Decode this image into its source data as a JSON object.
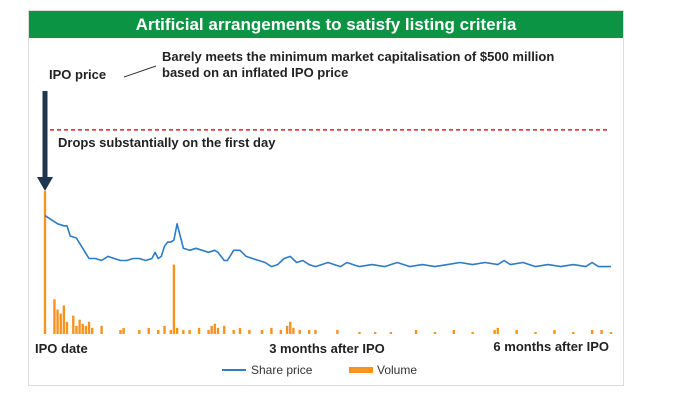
{
  "colors": {
    "title_bg": "#0b9444",
    "price_line": "#2e7cc4",
    "volume_bar": "#f7941d",
    "ipo_line": "#e02020",
    "arrow": "#1f3550"
  },
  "chart_data": {
    "type": "line",
    "title": "Artificial arrangements to satisfy listing criteria",
    "ipo_label": "IPO price",
    "annotations": [
      "Barely meets the minimum market capitalisation of $500 million",
      "based on an inflated IPO price",
      "Drops substantially on the first day"
    ],
    "x_ticks": [
      "IPO date",
      "3 months after IPO",
      "6 months after IPO"
    ],
    "x_tick_days": [
      0,
      90,
      180
    ],
    "x_range": [
      0,
      180
    ],
    "y_range": [
      0,
      1.2
    ],
    "ipo_price": 1.0,
    "grid": false,
    "legend_position": "bottom",
    "series": [
      {
        "name": "Share price",
        "type": "line",
        "points": [
          [
            0,
            0.58
          ],
          [
            2,
            0.56
          ],
          [
            4,
            0.54
          ],
          [
            6,
            0.53
          ],
          [
            7,
            0.53
          ],
          [
            8,
            0.48
          ],
          [
            10,
            0.47
          ],
          [
            12,
            0.42
          ],
          [
            14,
            0.37
          ],
          [
            16,
            0.37
          ],
          [
            18,
            0.36
          ],
          [
            20,
            0.38
          ],
          [
            22,
            0.37
          ],
          [
            24,
            0.36
          ],
          [
            26,
            0.36
          ],
          [
            28,
            0.37
          ],
          [
            30,
            0.37
          ],
          [
            32,
            0.36
          ],
          [
            34,
            0.37
          ],
          [
            35,
            0.4
          ],
          [
            36,
            0.37
          ],
          [
            37,
            0.38
          ],
          [
            38,
            0.43
          ],
          [
            39,
            0.45
          ],
          [
            40,
            0.45
          ],
          [
            41,
            0.46
          ],
          [
            42,
            0.54
          ],
          [
            43,
            0.48
          ],
          [
            44,
            0.42
          ],
          [
            46,
            0.41
          ],
          [
            48,
            0.42
          ],
          [
            50,
            0.41
          ],
          [
            52,
            0.4
          ],
          [
            54,
            0.41
          ],
          [
            55,
            0.4
          ],
          [
            56,
            0.38
          ],
          [
            57,
            0.36
          ],
          [
            58,
            0.36
          ],
          [
            60,
            0.41
          ],
          [
            62,
            0.41
          ],
          [
            64,
            0.38
          ],
          [
            66,
            0.37
          ],
          [
            68,
            0.36
          ],
          [
            70,
            0.35
          ],
          [
            72,
            0.33
          ],
          [
            74,
            0.34
          ],
          [
            76,
            0.37
          ],
          [
            78,
            0.38
          ],
          [
            80,
            0.35
          ],
          [
            82,
            0.36
          ],
          [
            84,
            0.34
          ],
          [
            86,
            0.33
          ],
          [
            88,
            0.34
          ],
          [
            90,
            0.35
          ],
          [
            92,
            0.34
          ],
          [
            94,
            0.33
          ],
          [
            96,
            0.35
          ],
          [
            98,
            0.34
          ],
          [
            100,
            0.33
          ],
          [
            104,
            0.34
          ],
          [
            108,
            0.33
          ],
          [
            112,
            0.35
          ],
          [
            116,
            0.33
          ],
          [
            120,
            0.34
          ],
          [
            124,
            0.33
          ],
          [
            128,
            0.34
          ],
          [
            132,
            0.35
          ],
          [
            136,
            0.34
          ],
          [
            140,
            0.35
          ],
          [
            144,
            0.34
          ],
          [
            146,
            0.36
          ],
          [
            148,
            0.34
          ],
          [
            152,
            0.35
          ],
          [
            156,
            0.33
          ],
          [
            160,
            0.34
          ],
          [
            164,
            0.33
          ],
          [
            168,
            0.34
          ],
          [
            172,
            0.33
          ],
          [
            174,
            0.35
          ],
          [
            176,
            0.33
          ],
          [
            180,
            0.33
          ]
        ]
      },
      {
        "name": "Volume",
        "type": "bar",
        "points": [
          [
            0,
            0.7
          ],
          [
            3,
            0.17
          ],
          [
            4,
            0.12
          ],
          [
            5,
            0.1
          ],
          [
            6,
            0.14
          ],
          [
            7,
            0.06
          ],
          [
            9,
            0.09
          ],
          [
            10,
            0.04
          ],
          [
            11,
            0.07
          ],
          [
            12,
            0.05
          ],
          [
            13,
            0.04
          ],
          [
            14,
            0.06
          ],
          [
            15,
            0.03
          ],
          [
            18,
            0.04
          ],
          [
            24,
            0.02
          ],
          [
            25,
            0.03
          ],
          [
            30,
            0.02
          ],
          [
            33,
            0.03
          ],
          [
            36,
            0.02
          ],
          [
            38,
            0.04
          ],
          [
            40,
            0.02
          ],
          [
            41,
            0.34
          ],
          [
            42,
            0.03
          ],
          [
            44,
            0.02
          ],
          [
            46,
            0.02
          ],
          [
            49,
            0.03
          ],
          [
            52,
            0.02
          ],
          [
            53,
            0.04
          ],
          [
            54,
            0.05
          ],
          [
            55,
            0.03
          ],
          [
            57,
            0.04
          ],
          [
            60,
            0.02
          ],
          [
            62,
            0.03
          ],
          [
            65,
            0.02
          ],
          [
            69,
            0.02
          ],
          [
            72,
            0.03
          ],
          [
            75,
            0.02
          ],
          [
            77,
            0.04
          ],
          [
            78,
            0.06
          ],
          [
            79,
            0.03
          ],
          [
            81,
            0.02
          ],
          [
            84,
            0.02
          ],
          [
            86,
            0.02
          ],
          [
            93,
            0.02
          ],
          [
            100,
            0.01
          ],
          [
            105,
            0.01
          ],
          [
            110,
            0.01
          ],
          [
            118,
            0.02
          ],
          [
            124,
            0.01
          ],
          [
            130,
            0.02
          ],
          [
            136,
            0.01
          ],
          [
            143,
            0.02
          ],
          [
            144,
            0.03
          ],
          [
            150,
            0.02
          ],
          [
            156,
            0.01
          ],
          [
            162,
            0.02
          ],
          [
            168,
            0.01
          ],
          [
            174,
            0.02
          ],
          [
            177,
            0.02
          ],
          [
            180,
            0.01
          ]
        ]
      }
    ]
  }
}
